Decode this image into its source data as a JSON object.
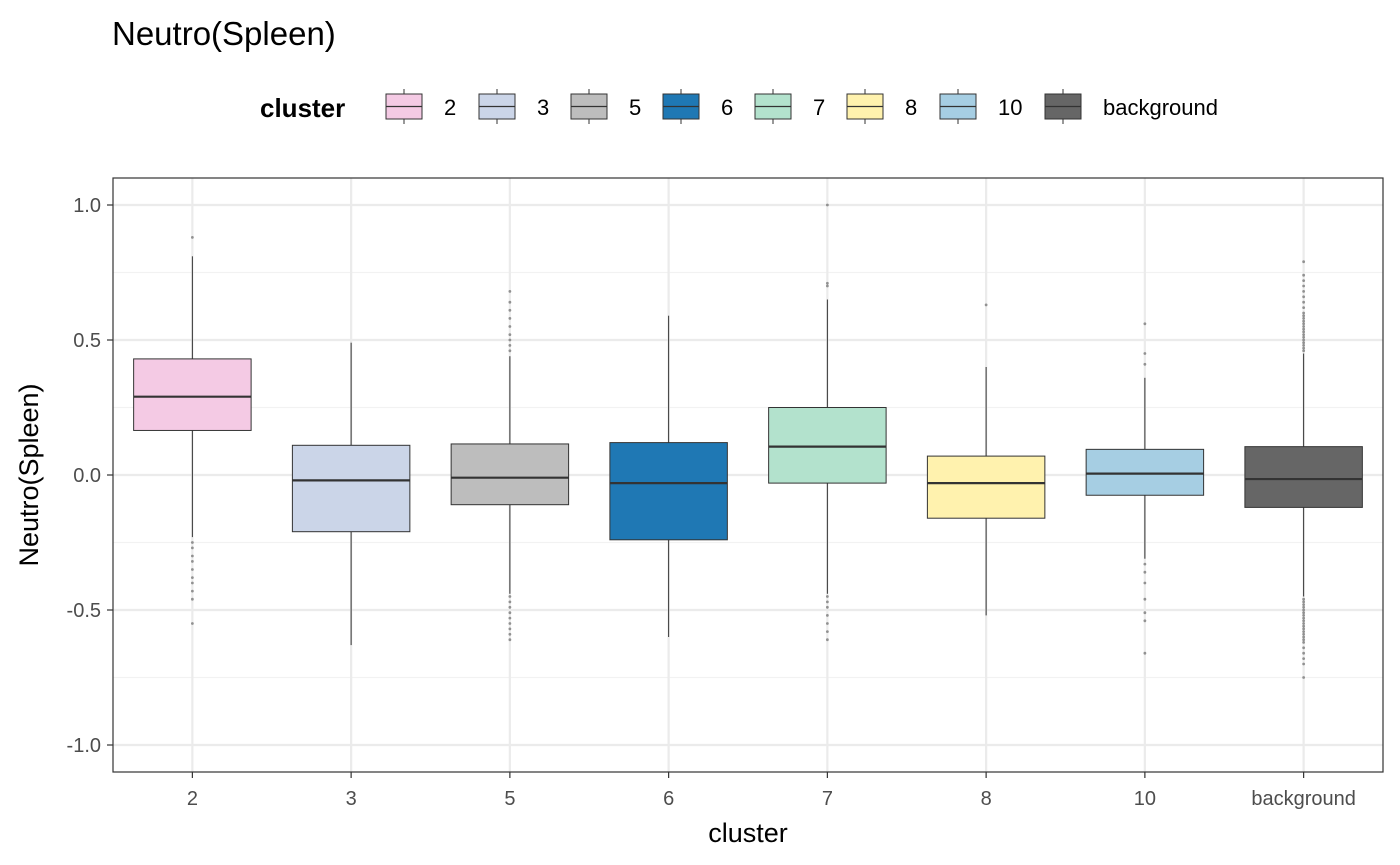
{
  "chart_data": {
    "type": "boxplot",
    "title": "Neutro(Spleen)",
    "xlabel": "cluster",
    "ylabel": "Neutro(Spleen)",
    "ylim": [
      -1.1,
      1.1
    ],
    "yticks": [
      -1.0,
      -0.5,
      0.0,
      0.5,
      1.0
    ],
    "ytick_labels": [
      "-1.0",
      "-0.5",
      "0.0",
      "0.5",
      "1.0"
    ],
    "grid": true,
    "legend": {
      "title": "cluster",
      "placement": "top",
      "entries": [
        "2",
        "3",
        "5",
        "6",
        "7",
        "8",
        "10",
        "background"
      ]
    },
    "categories": [
      "2",
      "3",
      "5",
      "6",
      "7",
      "8",
      "10",
      "background"
    ],
    "series": [
      {
        "category": "2",
        "color": "#F4CAE4",
        "lower_whisker": -0.23,
        "q1": 0.165,
        "median": 0.29,
        "q3": 0.43,
        "upper_whisker": 0.81,
        "outliers": [
          0.88,
          -0.25,
          -0.27,
          -0.3,
          -0.32,
          -0.35,
          -0.38,
          -0.4,
          -0.43,
          -0.46,
          -0.55
        ]
      },
      {
        "category": "3",
        "color": "#CBD5E8",
        "lower_whisker": -0.63,
        "q1": -0.21,
        "median": -0.02,
        "q3": 0.11,
        "upper_whisker": 0.49,
        "outliers": []
      },
      {
        "category": "5",
        "color": "#BDBDBD",
        "lower_whisker": -0.44,
        "q1": -0.11,
        "median": -0.01,
        "q3": 0.115,
        "upper_whisker": 0.44,
        "outliers": [
          0.46,
          0.48,
          0.5,
          0.52,
          0.55,
          0.58,
          0.61,
          0.64,
          0.68,
          -0.45,
          -0.47,
          -0.49,
          -0.51,
          -0.53,
          -0.55,
          -0.57,
          -0.59,
          -0.61
        ]
      },
      {
        "category": "6",
        "color": "#1F78B4",
        "lower_whisker": -0.6,
        "q1": -0.24,
        "median": -0.03,
        "q3": 0.12,
        "upper_whisker": 0.59,
        "outliers": []
      },
      {
        "category": "7",
        "color": "#B3E2CD",
        "lower_whisker": -0.44,
        "q1": -0.03,
        "median": 0.105,
        "q3": 0.25,
        "upper_whisker": 0.65,
        "outliers": [
          0.7,
          0.71,
          1.0,
          -0.45,
          -0.47,
          -0.49,
          -0.52,
          -0.55,
          -0.58,
          -0.61
        ]
      },
      {
        "category": "8",
        "color": "#FFF2AE",
        "lower_whisker": -0.52,
        "q1": -0.16,
        "median": -0.03,
        "q3": 0.07,
        "upper_whisker": 0.4,
        "outliers": [
          0.63
        ]
      },
      {
        "category": "10",
        "color": "#A6CEE3",
        "lower_whisker": -0.31,
        "q1": -0.075,
        "median": 0.005,
        "q3": 0.095,
        "upper_whisker": 0.36,
        "outliers": [
          0.41,
          0.45,
          0.56,
          -0.33,
          -0.36,
          -0.4,
          -0.46,
          -0.51,
          -0.54,
          -0.66
        ]
      },
      {
        "category": "background",
        "color": "#666666",
        "lower_whisker": -0.45,
        "q1": -0.12,
        "median": -0.015,
        "q3": 0.105,
        "upper_whisker": 0.45,
        "outliers": [
          0.46,
          0.47,
          0.48,
          0.49,
          0.5,
          0.51,
          0.52,
          0.53,
          0.54,
          0.55,
          0.56,
          0.57,
          0.58,
          0.59,
          0.6,
          0.62,
          0.64,
          0.66,
          0.68,
          0.7,
          0.72,
          0.74,
          0.79,
          -0.46,
          -0.47,
          -0.48,
          -0.49,
          -0.5,
          -0.51,
          -0.52,
          -0.53,
          -0.54,
          -0.55,
          -0.56,
          -0.57,
          -0.58,
          -0.59,
          -0.6,
          -0.61,
          -0.62,
          -0.64,
          -0.66,
          -0.68,
          -0.7,
          -0.75
        ]
      }
    ]
  }
}
